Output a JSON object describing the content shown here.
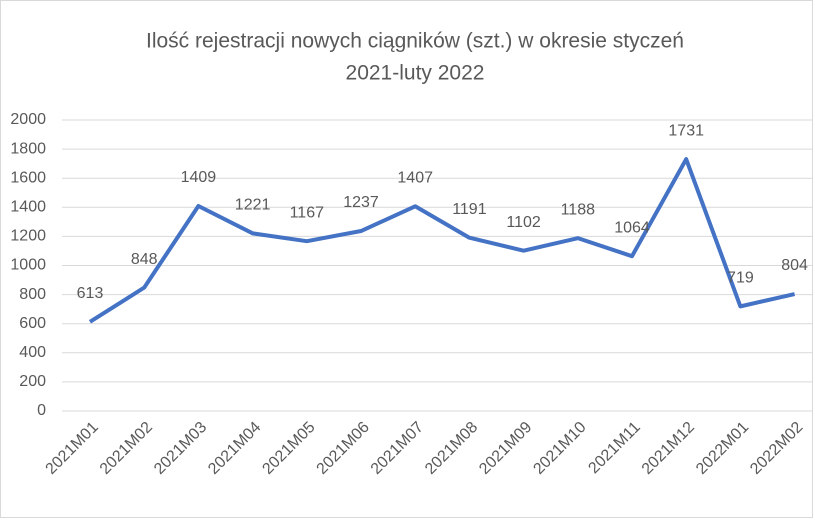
{
  "chart_data": {
    "type": "line",
    "title": [
      "Ilość rejestracji nowych ciągników (szt.) w okresie styczeń",
      "2021-luty 2022"
    ],
    "categories": [
      "2021M01",
      "2021M02",
      "2021M03",
      "2021M04",
      "2021M05",
      "2021M06",
      "2021M07",
      "2021M08",
      "2021M09",
      "2021M10",
      "2021M11",
      "2021M12",
      "2022M01",
      "2022M02"
    ],
    "values": [
      613,
      848,
      1409,
      1221,
      1167,
      1237,
      1407,
      1191,
      1102,
      1188,
      1064,
      1731,
      719,
      804
    ],
    "color": "#4472c4",
    "ylim": [
      0,
      2000
    ],
    "yticks": [
      0,
      200,
      400,
      600,
      800,
      1000,
      1200,
      1400,
      1600,
      1800,
      2000
    ],
    "grid": true
  }
}
